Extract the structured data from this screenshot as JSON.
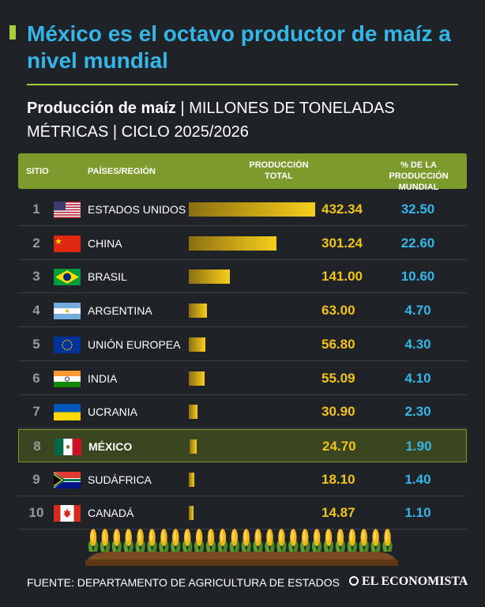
{
  "title": "México es el octavo productor de maíz a nivel mundial",
  "subtitle_bold": "Producción de maíz",
  "subtitle_rest": " | MILLONES DE TONELADAS MÉTRICAS | CICLO 2025/2026",
  "header": {
    "sitio": "SITIO",
    "paises": "PAÍSES/REGIÓN",
    "produccion": "PRODUCCIÓN TOTAL",
    "porcentaje": "% DE LA PRODUCCIÓN MUNDIAL"
  },
  "colors": {
    "accent_green": "#a6cf3c",
    "header_green": "#7d9a2c",
    "title_blue": "#35b6e8",
    "value_yellow": "#f2c318",
    "background": "#1f2328"
  },
  "chart_data": {
    "type": "bar",
    "categories": [
      "ESTADOS UNIDOS",
      "CHINA",
      "BRASIL",
      "ARGENTINA",
      "UNIÓN EUROPEA",
      "INDIA",
      "UCRANIA",
      "MÉXICO",
      "SUDÁFRICA",
      "CANADÁ"
    ],
    "ranks": [
      "1",
      "2",
      "3",
      "4",
      "5",
      "6",
      "7",
      "8",
      "9",
      "10"
    ],
    "values": [
      432.34,
      301.24,
      141.0,
      63.0,
      56.8,
      55.09,
      30.9,
      24.7,
      18.1,
      14.87
    ],
    "value_labels": [
      "432.34",
      "301.24",
      "141.00",
      "63.00",
      "56.80",
      "55.09",
      "30.90",
      "24.70",
      "18.10",
      "14.87"
    ],
    "share_labels": [
      "32.50",
      "22.60",
      "10.60",
      "4.70",
      "4.30",
      "4.10",
      "2.30",
      "1.90",
      "1.40",
      "1.10"
    ],
    "flags": [
      "flag-usa-icon",
      "flag-china-icon",
      "flag-brazil-icon",
      "flag-argentina-icon",
      "flag-eu-icon",
      "flag-india-icon",
      "flag-ukraine-icon",
      "flag-mexico-icon",
      "flag-south-africa-icon",
      "flag-canada-icon"
    ],
    "highlight_index": 7,
    "orientation": "horizontal",
    "xlim": [
      0,
      432.34
    ]
  },
  "footer": {
    "source": "FUENTE: DEPARTAMENTO DE AGRICULTURA DE ESTADOS",
    "logo": "EL ECONOMISTA"
  }
}
